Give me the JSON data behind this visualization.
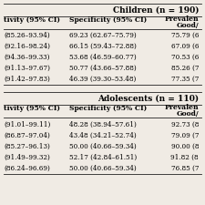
{
  "children_header": "Children (n = 190)",
  "adolescents_header": "Adolescents (n = 110)",
  "col_headers": [
    "tivity (95% CI)",
    "Specificity (95% CI)",
    "Prevalen\nGood/"
  ],
  "children_rows": [
    [
      "(85.26–93.94)",
      "69.23 (62.67–75.79)",
      "75.79 (6"
    ],
    [
      "(92.16–98.24)",
      "66.15 (59.43–72.88)",
      "67.09 (6"
    ],
    [
      "(94.36–99.33)",
      "53.68 (46.59–60.77)",
      "70.53 (6"
    ],
    [
      "(91.13–97.67)",
      "50.77 (43.66–57.88)",
      "85.26 (7"
    ],
    [
      "(91.42–97.83)",
      "46.39 (39.30–53.48)",
      "77.35 (7"
    ]
  ],
  "adolescents_rows": [
    [
      "(91.01–99.11)",
      "48.28 (38.94–57.61)",
      "92.73 (8"
    ],
    [
      "(86.87–97.04)",
      "43.48 (34.21–52.74)",
      "79.09 (7"
    ],
    [
      "(85.27–96.13)",
      "50.00 (40.66–59.34)",
      "90.00 (8"
    ],
    [
      "(91.49–99.32)",
      "52.17 (42.84–61.51)",
      "91.82 (8"
    ],
    [
      "(86.24–96.69)",
      "50.00 (40.66–59.34)",
      "76.85 (7"
    ]
  ],
  "bg_color": "#f0ebe4",
  "line_color": "#222222"
}
